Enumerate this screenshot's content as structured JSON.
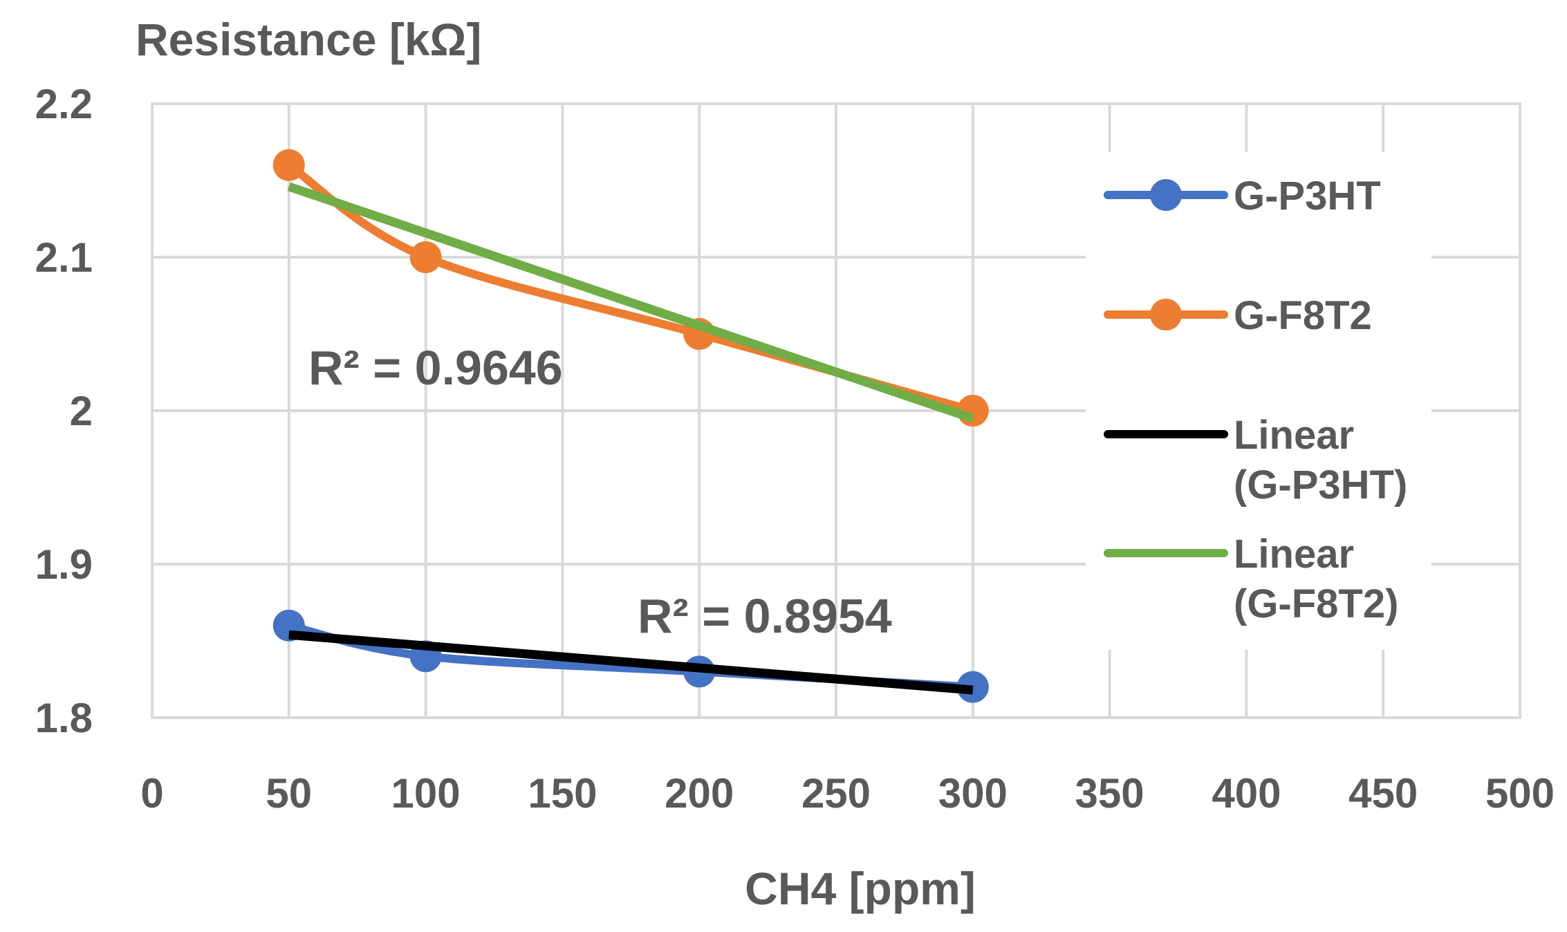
{
  "chart_data": {
    "type": "line",
    "ylabel": "Resistance [kΩ]",
    "xlabel": "CH4 [ppm]",
    "xlim": [
      0,
      500
    ],
    "ylim": [
      1.8,
      2.2
    ],
    "x_ticks": [
      "0",
      "50",
      "100",
      "150",
      "200",
      "250",
      "300",
      "350",
      "400",
      "450",
      "500"
    ],
    "y_ticks": [
      "1.8",
      "1.9",
      "2",
      "2.1",
      "2.2"
    ],
    "grid": true,
    "legend_position": "right",
    "series": [
      {
        "name": "G-P3HT",
        "color": "#4472C4",
        "x": [
          50,
          100,
          200,
          300
        ],
        "values": [
          1.86,
          1.84,
          1.83,
          1.82
        ]
      },
      {
        "name": "G-F8T2",
        "color": "#ED7D31",
        "x": [
          50,
          100,
          200,
          300
        ],
        "values": [
          2.16,
          2.1,
          2.05,
          2.0
        ]
      }
    ],
    "trendlines": [
      {
        "name": "Linear (G-P3HT)",
        "legend_lines": [
          "Linear",
          "(G-P3HT)"
        ],
        "color": "#000000",
        "x": [
          50,
          300
        ],
        "values": [
          1.854,
          1.818
        ],
        "r2_label": "R² = 0.8954"
      },
      {
        "name": "Linear (G-F8T2)",
        "legend_lines": [
          "Linear",
          "(G-F8T2)"
        ],
        "color": "#70AD47",
        "x": [
          50,
          300
        ],
        "values": [
          2.146,
          1.995
        ],
        "r2_label": "R² = 0.9646"
      }
    ]
  }
}
